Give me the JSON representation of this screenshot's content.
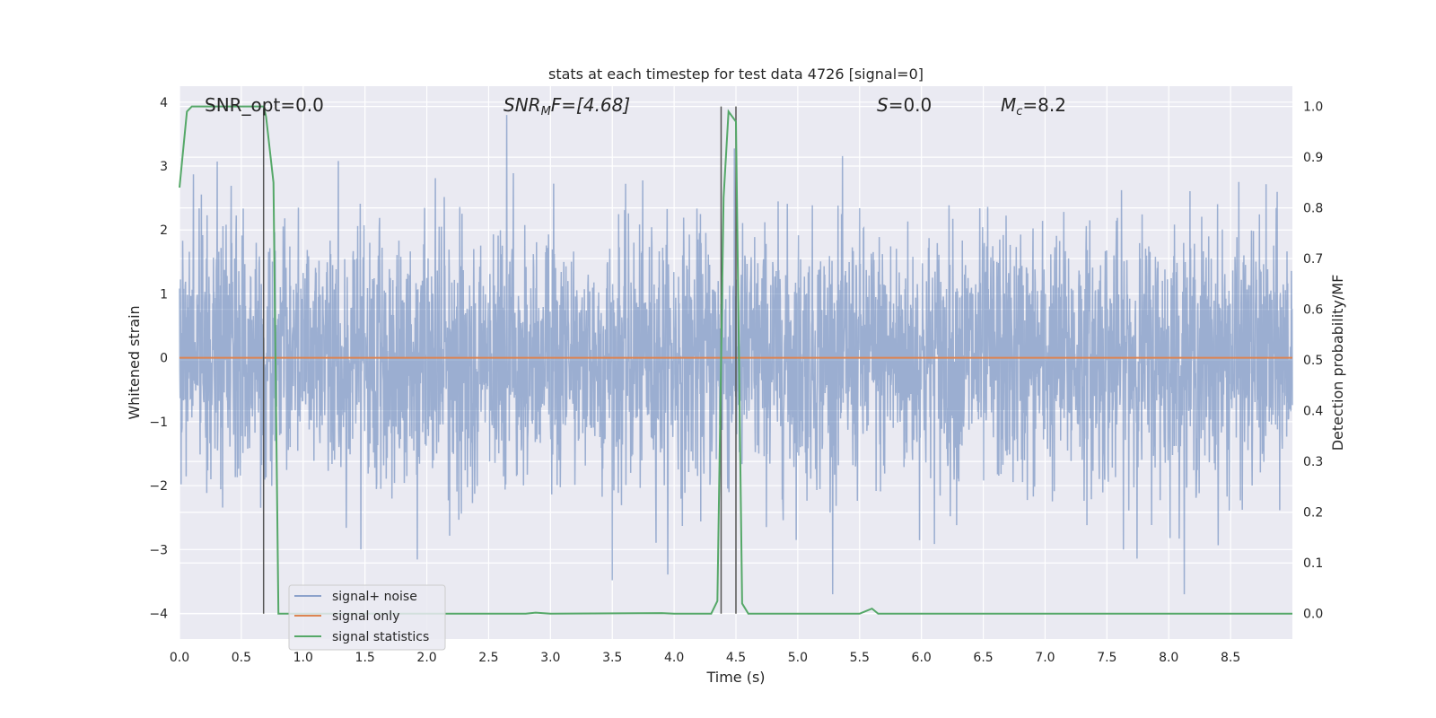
{
  "chart_data": {
    "type": "line",
    "title": "stats at each timestep for test data 4726 [signal=0]",
    "xlabel": "Time (s)",
    "ylabel": "Whitened strain",
    "y2label": "Detection probability/MF",
    "xlim": [
      0.0,
      9.0
    ],
    "ylim": [
      -4.4,
      4.25
    ],
    "y2lim": [
      -0.05,
      1.04
    ],
    "xticks": [
      "0.0",
      "0.5",
      "1.0",
      "1.5",
      "2.0",
      "2.5",
      "3.0",
      "3.5",
      "4.0",
      "4.5",
      "5.0",
      "5.5",
      "6.0",
      "6.5",
      "7.0",
      "7.5",
      "8.0",
      "8.5"
    ],
    "yticks": [
      "4",
      "3",
      "2",
      "1",
      "0",
      "−1",
      "−2",
      "−3",
      "−4"
    ],
    "y2ticks": [
      "1.0",
      "0.9",
      "0.8",
      "0.7",
      "0.6",
      "0.5",
      "0.4",
      "0.3",
      "0.2",
      "0.1",
      "0.0"
    ],
    "grid": true,
    "legend_position": "lower-left",
    "annotations": {
      "snr_opt": "SNR_opt=0.0",
      "snr_mf_base": "SNR",
      "snr_mf_sub": "M",
      "snr_mf_rest": "F=[4.68]",
      "s_label": "S",
      "s_value": "=0.0",
      "mc_base": "M",
      "mc_sub": "c",
      "mc_value": "=8.2"
    },
    "vertical_markers_s": [
      0.68,
      4.38,
      4.5
    ],
    "series": [
      {
        "name": "signal+ noise",
        "color": "#4c72b0",
        "description_noise_sigma": 1.0,
        "sample_rate_hz": 300,
        "x_range": [
          0.0,
          9.0
        ]
      },
      {
        "name": "signal only",
        "color": "#dd8452",
        "x": [
          0.0,
          9.0
        ],
        "values": [
          0.0,
          0.0
        ]
      },
      {
        "name": "signal statistics",
        "color": "#55a868",
        "axis": "right",
        "x": [
          0.0,
          0.06,
          0.1,
          0.2,
          0.4,
          0.6,
          0.68,
          0.7,
          0.76,
          0.8,
          1.0,
          2.0,
          2.8,
          2.88,
          3.0,
          3.9,
          4.0,
          4.3,
          4.35,
          4.4,
          4.44,
          4.5,
          4.55,
          4.6,
          5.0,
          5.5,
          5.55,
          5.6,
          5.65,
          6.0,
          7.0,
          8.0,
          9.0
        ],
        "values": [
          0.84,
          0.99,
          1.0,
          1.0,
          1.0,
          1.0,
          1.0,
          0.98,
          0.85,
          0.0,
          0.0,
          0.0,
          0.0,
          0.002,
          0.0,
          0.001,
          0.0,
          0.0,
          0.025,
          0.82,
          0.99,
          0.97,
          0.02,
          0.0,
          0.0,
          0.0,
          0.005,
          0.01,
          0.0,
          0.0,
          0.0,
          0.0,
          0.0
        ]
      }
    ]
  }
}
